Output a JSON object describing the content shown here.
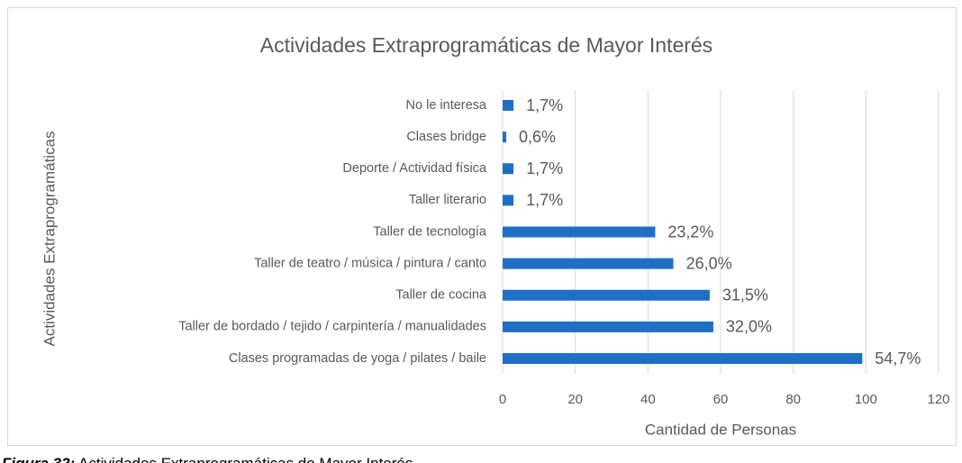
{
  "chart_data": {
    "type": "bar",
    "orientation": "horizontal",
    "title": "Actividades Extraprogramáticas de Mayor Interés",
    "x_label": "Cantidad de Personas",
    "y_label": "Actividades Extraprogramáticas",
    "categories": [
      "No le interesa",
      "Clases bridge",
      "Deporte / Actividad física",
      "Taller literario",
      "Taller de tecnología",
      "Taller de teatro / música / pintura / canto",
      "Taller de cocina",
      "Taller de bordado / tejido / carpintería / manualidades",
      "Clases programadas de yoga / pilates / baile"
    ],
    "values": [
      3,
      1,
      3,
      3,
      42,
      47,
      57,
      58,
      99
    ],
    "value_labels": [
      "1,7%",
      "0,6%",
      "1,7%",
      "1,7%",
      "23,2%",
      "26,0%",
      "31,5%",
      "32,0%",
      "54,7%"
    ],
    "color": "#1f6fc6",
    "xlim": [
      0,
      120
    ],
    "xticks": [
      0,
      20,
      40,
      60,
      80,
      100,
      120
    ],
    "grid": true
  },
  "caption": {
    "label": "Figura 32:",
    "text": " Actividades Extraprogramáticas de Mayor Interés"
  }
}
